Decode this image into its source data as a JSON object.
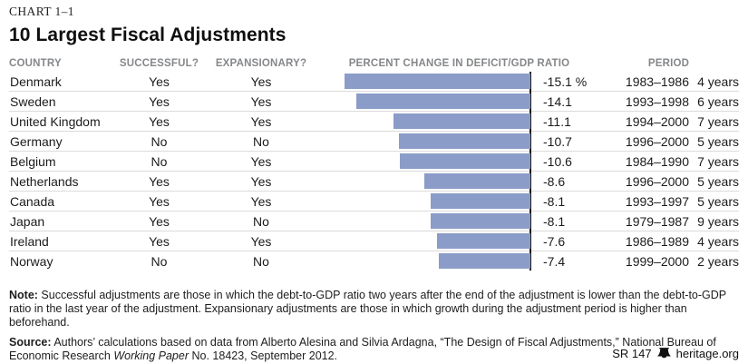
{
  "chart_label": "CHART 1–1",
  "title": "10 Largest Fiscal Adjustments",
  "columns": {
    "country": "COUNTRY",
    "successful": "SUCCESSFUL?",
    "expansionary": "EXPANSIONARY?",
    "percent_change": "PERCENT CHANGE IN DEFICIT/GDP RATIO",
    "period": "PERIOD"
  },
  "chart_data": {
    "type": "bar",
    "orientation": "horizontal",
    "title": "10 Largest Fiscal Adjustments",
    "xlabel": "Percent Change in Deficit/GDP Ratio",
    "xlim": [
      -15.5,
      0
    ],
    "grid": false,
    "legend": "none",
    "bar_color": "#8b9cc8",
    "axis_color": "#1a1a1a",
    "categories": [
      "Denmark",
      "Sweden",
      "United Kingdom",
      "Germany",
      "Belgium",
      "Netherlands",
      "Canada",
      "Japan",
      "Ireland",
      "Norway"
    ],
    "values": [
      -15.1,
      -14.1,
      -11.1,
      -10.7,
      -10.6,
      -8.6,
      -8.1,
      -8.1,
      -7.6,
      -7.4
    ],
    "value_labels": [
      "-15.1 %",
      "-14.1",
      "-11.1",
      "-10.7",
      "-10.6",
      "-8.6",
      "-8.1",
      "-8.1",
      "-7.6",
      "-7.4"
    ]
  },
  "table": {
    "rows": [
      {
        "country": "Denmark",
        "successful": "Yes",
        "expansionary": "Yes",
        "value": -15.1,
        "value_label": "-15.1 %",
        "period": "1983–1986",
        "duration": "4 years"
      },
      {
        "country": "Sweden",
        "successful": "Yes",
        "expansionary": "Yes",
        "value": -14.1,
        "value_label": "-14.1",
        "period": "1993–1998",
        "duration": "6 years"
      },
      {
        "country": "United Kingdom",
        "successful": "Yes",
        "expansionary": "Yes",
        "value": -11.1,
        "value_label": "-11.1",
        "period": "1994–2000",
        "duration": "7 years"
      },
      {
        "country": "Germany",
        "successful": "No",
        "expansionary": "No",
        "value": -10.7,
        "value_label": "-10.7",
        "period": "1996–2000",
        "duration": "5 years"
      },
      {
        "country": "Belgium",
        "successful": "No",
        "expansionary": "Yes",
        "value": -10.6,
        "value_label": "-10.6",
        "period": "1984–1990",
        "duration": "7 years"
      },
      {
        "country": "Netherlands",
        "successful": "Yes",
        "expansionary": "Yes",
        "value": -8.6,
        "value_label": "-8.6",
        "period": "1996–2000",
        "duration": "5 years"
      },
      {
        "country": "Canada",
        "successful": "Yes",
        "expansionary": "Yes",
        "value": -8.1,
        "value_label": "-8.1",
        "period": "1993–1997",
        "duration": "5 years"
      },
      {
        "country": "Japan",
        "successful": "Yes",
        "expansionary": "No",
        "value": -8.1,
        "value_label": "-8.1",
        "period": "1979–1987",
        "duration": "9 years"
      },
      {
        "country": "Ireland",
        "successful": "Yes",
        "expansionary": "Yes",
        "value": -7.6,
        "value_label": "-7.6",
        "period": "1986–1989",
        "duration": "4 years"
      },
      {
        "country": "Norway",
        "successful": "No",
        "expansionary": "No",
        "value": -7.4,
        "value_label": "-7.4",
        "period": "1999–2000",
        "duration": "2 years"
      }
    ]
  },
  "note": {
    "label": "Note:",
    "text": " Successful adjustments are those in which the debt-to-GDP ratio two years after the end of the adjustment is lower than the debt-to-GDP ratio in the last year of the adjustment. Expansionary adjustments are those in which growth during the adjustment period is higher than beforehand."
  },
  "source": {
    "label": "Source:",
    "text_before_italic": " Authors’ calculations based on data from Alberto Alesina and Silvia Ardagna, “The Design of Fiscal Adjustments,” National Bureau of Economic Research ",
    "italic": "Working Paper",
    "text_after_italic": " No. 18423, September 2012."
  },
  "footer_right": {
    "report_id": "SR 147",
    "site": "heritage.org"
  }
}
